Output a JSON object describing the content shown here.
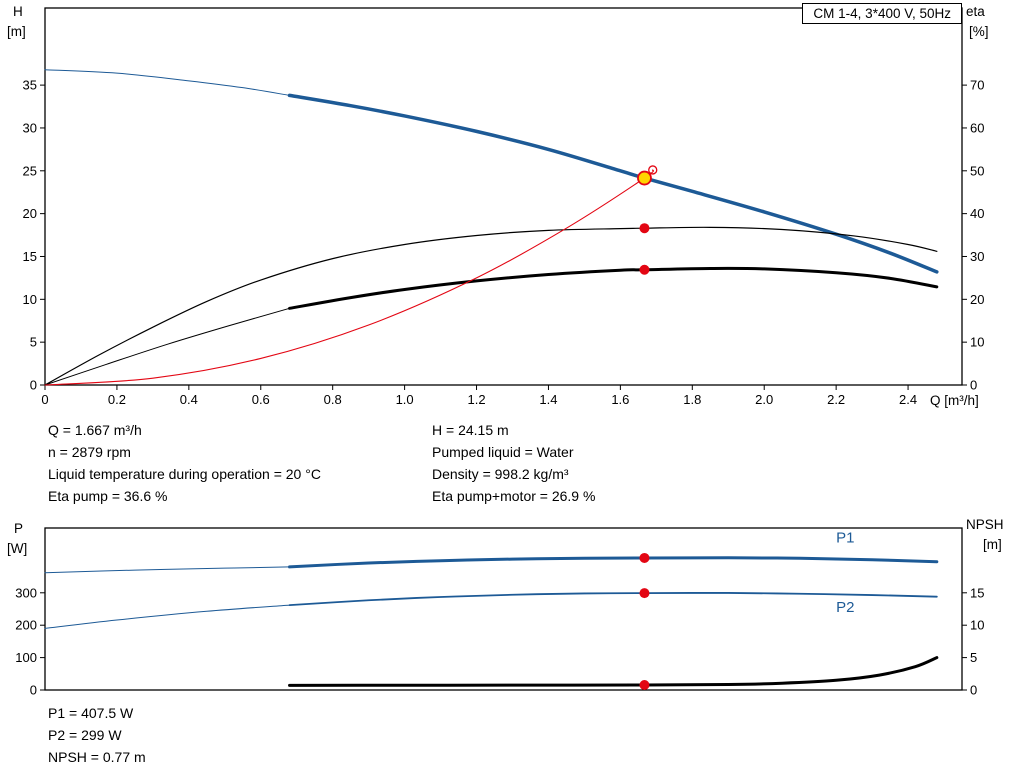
{
  "title_box": "CM 1-4, 3*400 V, 50Hz",
  "colors": {
    "curve_blue": "#1d5a96",
    "curve_red": "#e30613",
    "curve_black": "#000000",
    "duty_fill": "#ffd400",
    "text": "#000000"
  },
  "readouts_top": {
    "left": [
      "Q = 1.667 m³/h",
      "n = 2879 rpm",
      "Liquid temperature during operation = 20 °C",
      "Eta pump = 36.6 %"
    ],
    "right": [
      "H = 24.15 m",
      "Pumped liquid = Water",
      "Density = 998.2 kg/m³",
      "Eta pump+motor = 26.9 %"
    ]
  },
  "readouts_bottom": [
    "P1 = 407.5 W",
    "P2 = 299 W",
    "NPSH = 0.77 m"
  ],
  "chart_data": [
    {
      "id": "hq",
      "type": "line",
      "title": "CM 1-4, 3*400 V, 50Hz",
      "x_axis": {
        "label": "Q [m³/h]",
        "min": 0,
        "max": 2.55,
        "decimals": 1,
        "ticks": [
          0,
          0.2,
          0.4,
          0.6,
          0.8,
          1.0,
          1.2,
          1.4,
          1.6,
          1.8,
          2.0,
          2.2,
          2.4
        ]
      },
      "y_left": {
        "label": "H",
        "unit": "[m]",
        "min": 0,
        "max": 44,
        "ticks": [
          0,
          5,
          10,
          15,
          20,
          25,
          30,
          35
        ]
      },
      "y_right": {
        "label": "eta",
        "unit": "[%]",
        "min": 0,
        "max": 88,
        "ticks": [
          0,
          10,
          20,
          30,
          40,
          50,
          60,
          70
        ]
      },
      "grid": false,
      "series": [
        {
          "name": "pump-curve-extension",
          "axis": "left",
          "color": "#1d5a96",
          "width": 1,
          "points": [
            [
              0,
              36.8
            ],
            [
              0.2,
              36.4
            ],
            [
              0.4,
              35.5
            ],
            [
              0.55,
              34.7
            ],
            [
              0.68,
              33.8
            ]
          ]
        },
        {
          "name": "pump-curve",
          "axis": "left",
          "color": "#1d5a96",
          "width": 3.5,
          "points": [
            [
              0.68,
              33.8
            ],
            [
              0.85,
              32.6
            ],
            [
              1.0,
              31.4
            ],
            [
              1.2,
              29.6
            ],
            [
              1.4,
              27.5
            ],
            [
              1.6,
              25.0
            ],
            [
              1.667,
              24.15
            ],
            [
              1.8,
              22.6
            ],
            [
              2.0,
              20.2
            ],
            [
              2.2,
              17.6
            ],
            [
              2.35,
              15.4
            ],
            [
              2.48,
              13.2
            ]
          ]
        },
        {
          "name": "eta-pump-curve",
          "axis": "right",
          "color": "#000000",
          "width": 1.2,
          "points": [
            [
              0,
              0
            ],
            [
              0.15,
              7
            ],
            [
              0.3,
              13.5
            ],
            [
              0.45,
              19.5
            ],
            [
              0.6,
              24.5
            ],
            [
              0.8,
              29.5
            ],
            [
              1.0,
              32.8
            ],
            [
              1.2,
              34.9
            ],
            [
              1.4,
              36.1
            ],
            [
              1.6,
              36.5
            ],
            [
              1.667,
              36.6
            ],
            [
              1.85,
              36.8
            ],
            [
              2.05,
              36.3
            ],
            [
              2.25,
              34.8
            ],
            [
              2.4,
              32.8
            ],
            [
              2.48,
              31.2
            ]
          ]
        },
        {
          "name": "eta-pump-motor-extension",
          "axis": "right",
          "color": "#000000",
          "width": 1,
          "points": [
            [
              0,
              0
            ],
            [
              0.17,
              4.8
            ],
            [
              0.34,
              9.5
            ],
            [
              0.51,
              13.8
            ],
            [
              0.68,
              17.9
            ]
          ]
        },
        {
          "name": "eta-pump-motor-curve",
          "axis": "right",
          "color": "#000000",
          "width": 3,
          "points": [
            [
              0.68,
              17.9
            ],
            [
              0.85,
              20.4
            ],
            [
              1.0,
              22.3
            ],
            [
              1.2,
              24.3
            ],
            [
              1.4,
              25.8
            ],
            [
              1.6,
              26.8
            ],
            [
              1.667,
              26.9
            ],
            [
              1.85,
              27.2
            ],
            [
              2.0,
              27.1
            ],
            [
              2.2,
              26.2
            ],
            [
              2.35,
              24.9
            ],
            [
              2.48,
              22.9
            ]
          ]
        },
        {
          "name": "system-curve",
          "axis": "left",
          "color": "#e30613",
          "width": 1.1,
          "points": [
            [
              0,
              0
            ],
            [
              0.3,
              0.8
            ],
            [
              0.6,
              3.1
            ],
            [
              0.9,
              7.0
            ],
            [
              1.2,
              12.5
            ],
            [
              1.45,
              18.3
            ],
            [
              1.667,
              24.15
            ],
            [
              1.69,
              25.1
            ]
          ]
        }
      ],
      "markers": [
        {
          "name": "system-curve-end-marker",
          "axis": "left",
          "x": 1.69,
          "y": 25.1,
          "style": "open"
        },
        {
          "name": "duty-point",
          "axis": "left",
          "x": 1.667,
          "y": 24.15,
          "style": "duty"
        },
        {
          "name": "eta-pump-point",
          "axis": "right",
          "x": 1.667,
          "y": 36.6,
          "style": "red-dot"
        },
        {
          "name": "eta-pump-motor-point",
          "axis": "right",
          "x": 1.667,
          "y": 26.9,
          "style": "red-dot"
        }
      ],
      "annotations": []
    },
    {
      "id": "power",
      "type": "line",
      "x_axis": {
        "label": "",
        "min": 0,
        "max": 2.55,
        "decimals": 1,
        "ticks": []
      },
      "y_left": {
        "label": "P",
        "unit": "[W]",
        "min": 0,
        "max": 500,
        "ticks": [
          0,
          100,
          200,
          300
        ]
      },
      "y_right": {
        "label": "NPSH",
        "unit": "[m]",
        "min": 0,
        "max": 25,
        "ticks": [
          0,
          5,
          10,
          15
        ]
      },
      "grid": false,
      "series": [
        {
          "name": "p1-curve-extension",
          "axis": "left",
          "color": "#1d5a96",
          "width": 1,
          "points": [
            [
              0,
              362
            ],
            [
              0.25,
              370
            ],
            [
              0.5,
              376
            ],
            [
              0.68,
              380
            ]
          ]
        },
        {
          "name": "p1-curve",
          "axis": "left",
          "color": "#1d5a96",
          "width": 3,
          "points": [
            [
              0.68,
              380
            ],
            [
              0.9,
              392
            ],
            [
              1.1,
              399
            ],
            [
              1.3,
              404
            ],
            [
              1.5,
              406.5
            ],
            [
              1.667,
              407.5
            ],
            [
              1.9,
              408
            ],
            [
              2.1,
              406.5
            ],
            [
              2.3,
              402
            ],
            [
              2.48,
              396
            ]
          ]
        },
        {
          "name": "p2-curve-extension",
          "axis": "left",
          "color": "#1d5a96",
          "width": 1,
          "points": [
            [
              0,
              190
            ],
            [
              0.2,
              216
            ],
            [
              0.45,
              243
            ],
            [
              0.68,
              262
            ]
          ]
        },
        {
          "name": "p2-curve",
          "axis": "left",
          "color": "#1d5a96",
          "width": 1.8,
          "points": [
            [
              0.68,
              262
            ],
            [
              0.9,
              277
            ],
            [
              1.1,
              287
            ],
            [
              1.3,
              294
            ],
            [
              1.5,
              298
            ],
            [
              1.667,
              299
            ],
            [
              1.9,
              299.5
            ],
            [
              2.1,
              297
            ],
            [
              2.3,
              293
            ],
            [
              2.48,
              288
            ]
          ]
        },
        {
          "name": "npsh-curve",
          "axis": "right",
          "color": "#000000",
          "width": 3,
          "points": [
            [
              0.68,
              0.72
            ],
            [
              1.0,
              0.73
            ],
            [
              1.3,
              0.75
            ],
            [
              1.667,
              0.77
            ],
            [
              1.9,
              0.85
            ],
            [
              2.05,
              1.05
            ],
            [
              2.2,
              1.5
            ],
            [
              2.32,
              2.3
            ],
            [
              2.42,
              3.6
            ],
            [
              2.48,
              5.0
            ]
          ]
        }
      ],
      "markers": [
        {
          "name": "p1-point",
          "axis": "left",
          "x": 1.667,
          "y": 407.5,
          "style": "red-dot"
        },
        {
          "name": "p2-point",
          "axis": "left",
          "x": 1.667,
          "y": 299,
          "style": "red-dot"
        },
        {
          "name": "npsh-point",
          "axis": "right",
          "x": 1.667,
          "y": 0.77,
          "style": "red-dot"
        }
      ],
      "annotations": [
        {
          "name": "p1-curve-label",
          "text": "P1",
          "axis": "left",
          "x": 2.2,
          "y": 455,
          "color": "#1d5a96"
        },
        {
          "name": "p2-curve-label",
          "text": "P2",
          "axis": "left",
          "x": 2.2,
          "y": 240,
          "color": "#1d5a96"
        }
      ]
    }
  ]
}
